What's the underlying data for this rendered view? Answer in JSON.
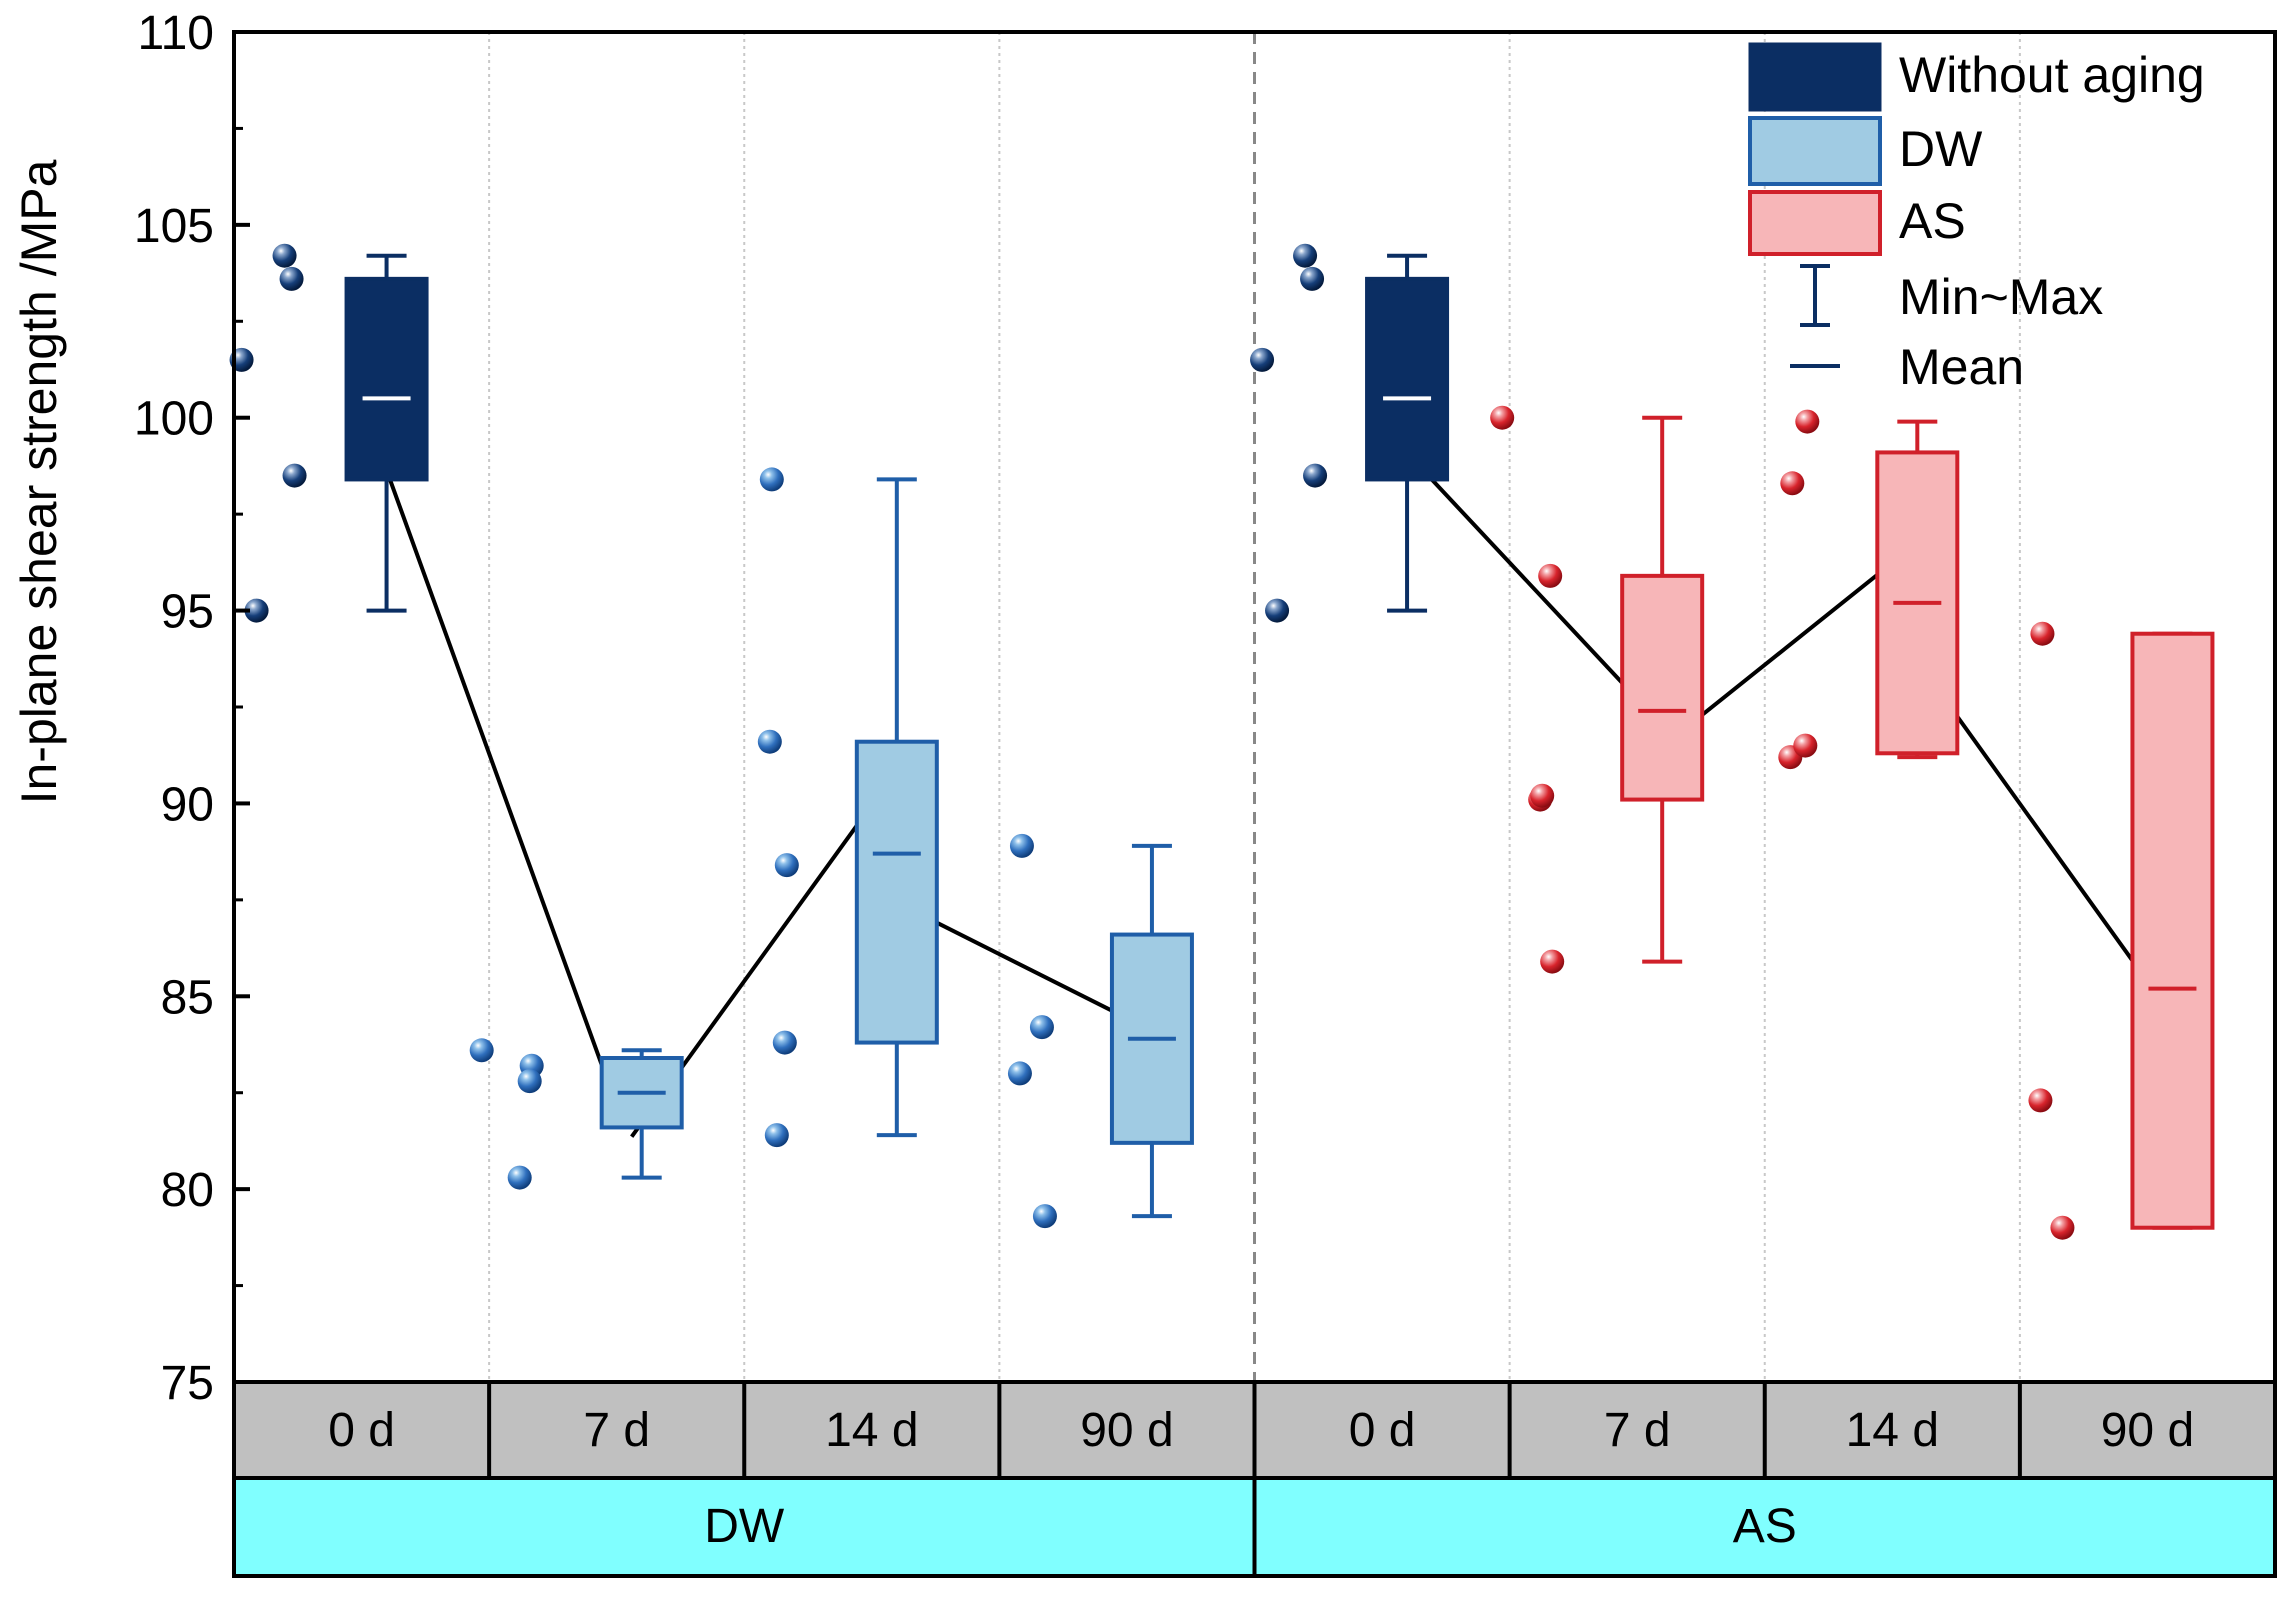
{
  "chart_data": {
    "type": "box",
    "ylabel": "In-plane shear strength /MPa",
    "ylim": [
      75,
      110
    ],
    "yticks": [
      75,
      80,
      85,
      90,
      95,
      100,
      105,
      110
    ],
    "conditions": [
      "0 d",
      "7 d",
      "14 d",
      "90 d",
      "0 d",
      "7 d",
      "14 d",
      "90 d"
    ],
    "groups": [
      "DW",
      "AS"
    ],
    "legend": {
      "position": "top-right",
      "without_aging": "Without aging",
      "dw": "DW",
      "as": "AS",
      "minmax": "Min~Max",
      "mean": "Mean"
    },
    "colors": {
      "without_aging_fill": "#0b2e63",
      "dw_fill": "#a0cbe3",
      "dw_edge": "#1f5ea8",
      "as_fill": "#f7b6b8",
      "as_edge": "#d0202a",
      "group_band": "#80ffff",
      "condition_band": "#c0c0c0",
      "mean_line": "#000000"
    },
    "series": [
      {
        "group": "DW",
        "condition": "0 d",
        "style": "without_aging",
        "min": 95.0,
        "q1": 98.4,
        "median": 100.5,
        "q3": 103.6,
        "max": 104.2,
        "mean": 100.5,
        "points": [
          101.5,
          104.2,
          103.6,
          98.5,
          95.0
        ]
      },
      {
        "group": "DW",
        "condition": "7 d",
        "style": "dw",
        "min": 80.3,
        "q1": 81.6,
        "median": 82.5,
        "q3": 83.4,
        "max": 83.6,
        "mean": 82.5,
        "points": [
          83.6,
          80.3,
          83.2,
          82.8
        ]
      },
      {
        "group": "DW",
        "condition": "14 d",
        "style": "dw",
        "min": 81.4,
        "q1": 83.8,
        "median": 88.7,
        "q3": 91.6,
        "max": 98.4,
        "mean": 88.7,
        "points": [
          98.4,
          91.6,
          88.4,
          83.8,
          81.4
        ]
      },
      {
        "group": "DW",
        "condition": "90 d",
        "style": "dw",
        "min": 79.3,
        "q1": 81.2,
        "median": 83.9,
        "q3": 86.6,
        "max": 88.9,
        "mean": 83.9,
        "points": [
          88.9,
          83.0,
          84.2,
          79.3
        ]
      },
      {
        "group": "AS",
        "condition": "0 d",
        "style": "without_aging",
        "min": 95.0,
        "q1": 98.4,
        "median": 100.5,
        "q3": 103.6,
        "max": 104.2,
        "mean": 100.5,
        "points": [
          101.5,
          104.2,
          103.6,
          98.5,
          95.0
        ]
      },
      {
        "group": "AS",
        "condition": "7 d",
        "style": "as",
        "min": 85.9,
        "q1": 90.1,
        "median": 92.4,
        "q3": 95.9,
        "max": 100.0,
        "mean": 92.4,
        "points": [
          100.0,
          90.1,
          85.9,
          95.9,
          90.2
        ]
      },
      {
        "group": "AS",
        "condition": "14 d",
        "style": "as",
        "min": 91.2,
        "q1": 91.3,
        "median": 95.2,
        "q3": 99.1,
        "max": 99.9,
        "mean": 95.2,
        "points": [
          98.3,
          91.2,
          99.9,
          91.5
        ]
      },
      {
        "group": "AS",
        "condition": "90 d",
        "style": "as",
        "min": 79.0,
        "q1": 79.0,
        "median": 85.2,
        "q3": 94.4,
        "max": 94.4,
        "mean": 85.2,
        "points": [
          94.4,
          82.3,
          79.0
        ]
      }
    ]
  }
}
